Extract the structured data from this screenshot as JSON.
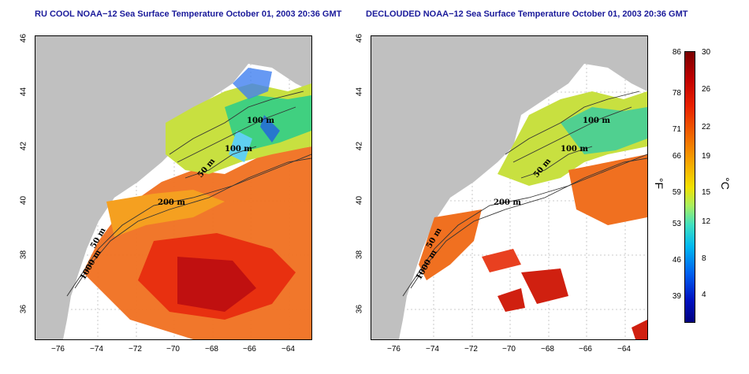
{
  "titles": {
    "left": "RU COOL NOAA−12 Sea Surface Temperature October 01, 2003 20:36 GMT",
    "right": "DECLOUDED NOAA−12 Sea Surface Temperature October 01, 2003 20:36 GMT"
  },
  "axes": {
    "lat_ticks": [
      "46",
      "44",
      "42",
      "40",
      "38",
      "36"
    ],
    "lon_ticks": [
      "−76",
      "−74",
      "−72",
      "−70",
      "−68",
      "−66",
      "−64"
    ]
  },
  "contour_labels": {
    "c100a": "100 m",
    "c100b": "100 m",
    "c50": "50 m",
    "c200": "200 m",
    "c50b": "50 m",
    "c1000": "1000 m"
  },
  "colorbar": {
    "fahrenheit_ticks": [
      "86",
      "78",
      "71",
      "66",
      "59",
      "53",
      "46",
      "39"
    ],
    "celsius_ticks": [
      "30",
      "26",
      "22",
      "19",
      "15",
      "12",
      "8",
      "4"
    ],
    "unit_f": "°F",
    "unit_c": "°C"
  },
  "colors": {
    "land": "#c0c0c0",
    "ocean_missing": "#ffffff",
    "title": "#1a1a9a"
  }
}
